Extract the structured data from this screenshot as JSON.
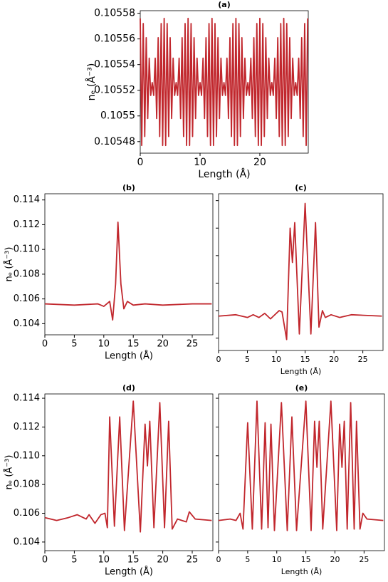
{
  "chart_data": [
    {
      "type": "line",
      "title": "(a)",
      "xlabel": "Length (Å)",
      "ylabel": "nₑ (Å⁻³)",
      "xlim": [
        0,
        28.1
      ],
      "ylim": [
        0.105471,
        0.105582
      ],
      "xticks": [
        0,
        10,
        20
      ],
      "yticks": [
        0.10548,
        0.1055,
        0.10552,
        0.10554,
        0.10556,
        0.10558
      ],
      "ytick_labels": true,
      "series": [
        {
          "color": "#c1272d",
          "x": [
            0,
            0.25,
            0.5,
            0.75,
            1,
            1.25,
            1.5,
            1.75,
            2,
            2.25,
            2.5,
            2.75,
            3,
            3.25,
            3.5,
            3.75,
            4,
            4.25,
            4.5,
            4.75,
            5,
            5.25,
            5.5,
            5.75,
            6,
            6.25,
            6.5,
            6.75,
            7,
            7.25,
            7.5,
            7.75,
            8,
            8.25,
            8.5,
            8.75,
            9,
            9.25,
            9.5,
            9.75,
            10,
            10.25,
            10.5,
            10.75,
            11,
            11.25,
            11.5,
            11.75,
            12,
            12.25,
            12.5,
            12.75,
            13,
            13.25,
            13.5,
            13.75,
            14,
            14.25,
            14.5,
            14.75,
            15,
            15.25,
            15.5,
            15.75,
            16,
            16.25,
            16.5,
            16.75,
            17,
            17.25,
            17.5,
            17.75,
            18,
            18.25,
            18.5,
            18.75,
            19,
            19.25,
            19.5,
            19.75,
            20,
            20.25,
            20.5,
            20.75,
            21,
            21.25,
            21.5,
            21.75,
            22,
            22.25,
            22.5,
            22.75,
            23,
            23.25,
            23.5,
            23.75,
            24,
            24.25,
            24.5,
            24.75,
            25,
            25.25,
            25.5,
            25.75,
            26,
            26.25,
            26.5,
            26.75,
            27,
            27.25,
            27.5,
            27.75,
            28
          ],
          "values": [
            0.105576,
            0.105477,
            0.105572,
            0.105484,
            0.105561,
            0.105498,
            0.105545,
            0.105516,
            0.105526,
            0.105516,
            0.105545,
            0.105498,
            0.105561,
            0.105484,
            0.105572,
            0.105477,
            0.105576,
            0.105477,
            0.105572,
            0.105484,
            0.105561,
            0.105498,
            0.105545,
            0.105516,
            0.105526,
            0.105516,
            0.105545,
            0.105498,
            0.105561,
            0.105484,
            0.105572,
            0.105477,
            0.105576,
            0.105477,
            0.105572,
            0.105484,
            0.105561,
            0.105498,
            0.105545,
            0.105516,
            0.105526,
            0.105516,
            0.105545,
            0.105498,
            0.105561,
            0.105484,
            0.105572,
            0.105477,
            0.105576,
            0.105477,
            0.105572,
            0.105484,
            0.105561,
            0.105498,
            0.105545,
            0.105516,
            0.105526,
            0.105516,
            0.105545,
            0.105498,
            0.105561,
            0.105484,
            0.105572,
            0.105477,
            0.105576,
            0.105477,
            0.105572,
            0.105484,
            0.105561,
            0.105498,
            0.105545,
            0.105516,
            0.105526,
            0.105516,
            0.105545,
            0.105498,
            0.105561,
            0.105484,
            0.105572,
            0.105477,
            0.105576,
            0.105477,
            0.105572,
            0.105484,
            0.105561,
            0.105498,
            0.105545,
            0.105516,
            0.105526,
            0.105516,
            0.105545,
            0.105498,
            0.105561,
            0.105484,
            0.105572,
            0.105477,
            0.105576,
            0.105477,
            0.105572,
            0.105484,
            0.105561,
            0.105498,
            0.105545,
            0.105516,
            0.105526,
            0.105516,
            0.105545,
            0.105498,
            0.105561,
            0.105484,
            0.105572,
            0.105477,
            0.105576
          ]
        }
      ]
    },
    {
      "type": "line",
      "title": "(b)",
      "xlabel": "Length (Å)",
      "ylabel": "nₑ (Å⁻³)",
      "xlim": [
        0,
        28.5
      ],
      "ylim": [
        0.1031,
        0.1145
      ],
      "xticks": [
        0,
        5,
        10,
        15,
        20,
        25
      ],
      "yticks": [
        0.104,
        0.106,
        0.108,
        {
          "value": 0.11,
          "label": "0.110"
        },
        0.112,
        0.114
      ],
      "ytick_labels": true,
      "series": [
        {
          "color": "#c1272d",
          "x": [
            0,
            5,
            9,
            10,
            11,
            11.5,
            12,
            12.4,
            12.9,
            13.4,
            14,
            15,
            17,
            20,
            25,
            28.3
          ],
          "values": [
            0.1056,
            0.1055,
            0.1056,
            0.1054,
            0.1058,
            0.1043,
            0.1072,
            0.1122,
            0.1072,
            0.1052,
            0.1058,
            0.1055,
            0.1056,
            0.1055,
            0.1056,
            0.1056
          ]
        }
      ]
    },
    {
      "type": "line",
      "title": "(c)",
      "xlabel": "Length (Å)",
      "xlim": [
        0,
        28.5
      ],
      "ylim": [
        0.1031,
        0.1145
      ],
      "xticks": [
        0,
        5,
        10,
        15,
        20,
        25
      ],
      "yticks": [
        0.104,
        0.106,
        0.108,
        0.11,
        0.112,
        0.114
      ],
      "ytick_labels": false,
      "series": [
        {
          "color": "#c1272d",
          "x": [
            0,
            3,
            5,
            6,
            7,
            8,
            9,
            9.5,
            10.5,
            11,
            11.8,
            12.4,
            12.8,
            13.2,
            14,
            15,
            16,
            16.8,
            17.4,
            18,
            18.5,
            19.5,
            21,
            23,
            28.3
          ],
          "values": [
            0.1056,
            0.1057,
            0.1055,
            0.1057,
            0.1055,
            0.1058,
            0.1054,
            0.1056,
            0.106,
            0.1059,
            0.1039,
            0.112,
            0.1095,
            0.1124,
            0.1043,
            0.1138,
            0.1043,
            0.1124,
            0.1048,
            0.106,
            0.1055,
            0.1057,
            0.1055,
            0.1057,
            0.1056
          ]
        }
      ]
    },
    {
      "type": "line",
      "title": "(d)",
      "xlabel": "Length (Å)",
      "ylabel": "nₑ (Å⁻³)",
      "xlim": [
        0,
        28.5
      ],
      "ylim": [
        0.1034,
        0.1143
      ],
      "xticks": [
        0,
        5,
        10,
        15,
        20,
        25
      ],
      "yticks": [
        0.104,
        0.106,
        0.108,
        {
          "value": 0.11,
          "label": "0.110"
        },
        0.112,
        0.114
      ],
      "ytick_labels": true,
      "series": [
        {
          "color": "#c1272d",
          "x": [
            0,
            2,
            4,
            5.5,
            7,
            7.5,
            8.5,
            9.5,
            10.2,
            10.6,
            11,
            11.8,
            12.7,
            13.5,
            15,
            16.2,
            17,
            17.4,
            17.8,
            18.5,
            19.5,
            20.3,
            21,
            21.6,
            22.5,
            24,
            24.5,
            25.5,
            28.3
          ],
          "values": [
            0.1057,
            0.1055,
            0.1057,
            0.1059,
            0.1056,
            0.1059,
            0.1053,
            0.1059,
            0.106,
            0.105,
            0.1127,
            0.1051,
            0.1127,
            0.1048,
            0.1138,
            0.1047,
            0.1122,
            0.1093,
            0.1124,
            0.105,
            0.1137,
            0.105,
            0.1124,
            0.1049,
            0.1056,
            0.1054,
            0.1061,
            0.1056,
            0.1055
          ]
        }
      ]
    },
    {
      "type": "line",
      "title": "(e)",
      "xlabel": "Length (Å)",
      "xlim": [
        0,
        28.5
      ],
      "ylim": [
        0.1034,
        0.1143
      ],
      "xticks": [
        0,
        5,
        10,
        15,
        20,
        25
      ],
      "yticks": [
        0.104,
        0.106,
        0.108,
        0.11,
        0.112,
        0.114
      ],
      "ytick_labels": false,
      "series": [
        {
          "color": "#c1272d",
          "x": [
            0,
            2,
            3,
            3.7,
            4.2,
            5,
            5.8,
            6.6,
            7.4,
            8,
            8.5,
            9,
            9.6,
            10.8,
            11.8,
            12.6,
            13.4,
            15,
            15.9,
            16.5,
            16.9,
            17.3,
            17.9,
            19.3,
            20.3,
            20.8,
            21.2,
            21.6,
            22.1,
            22.7,
            23.3,
            23.7,
            24.3,
            24.8,
            25.5,
            28.3
          ],
          "values": [
            0.1055,
            0.1056,
            0.1055,
            0.106,
            0.1049,
            0.1123,
            0.1049,
            0.1138,
            0.1049,
            0.1123,
            0.105,
            0.1122,
            0.1048,
            0.1137,
            0.1048,
            0.1127,
            0.1048,
            0.1138,
            0.1048,
            0.1124,
            0.1092,
            0.1124,
            0.1049,
            0.1138,
            0.1048,
            0.1122,
            0.1092,
            0.1124,
            0.1049,
            0.1137,
            0.1049,
            0.1124,
            0.1049,
            0.106,
            0.1056,
            0.1055
          ]
        }
      ]
    }
  ]
}
